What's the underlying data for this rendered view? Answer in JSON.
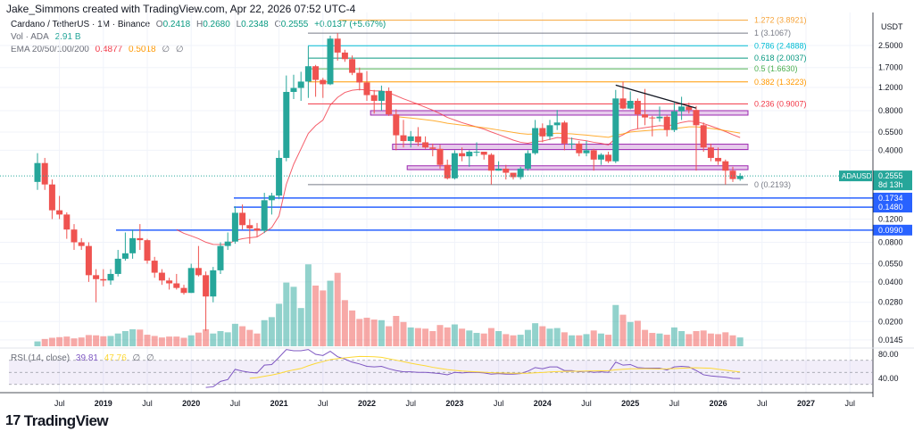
{
  "header": {
    "credit": "Jake_Simmons created with TradingView.com, Apr 22, 2026 07:52 UTC-4"
  },
  "legend": {
    "symbol": "Cardano / TetherUS · 1M · Binance",
    "o_label": "O",
    "o": "0.2418",
    "h_label": "H",
    "h": "0.2680",
    "l_label": "L",
    "l": "0.2348",
    "c_label": "C",
    "c": "0.2555",
    "change": "+0.0137 (+5.67%)",
    "vol_label": "Vol · ADA",
    "vol": "2.91 B",
    "ema_label": "EMA 20/50/100/200",
    "ema20": "0.4877",
    "ema50": "0.5018",
    "ema100": "∅",
    "ema200": "∅",
    "rsi_label": "RSI (14, close)",
    "rsi": "39.81",
    "rsi_ma": "47.76",
    "rsi_x1": "∅",
    "rsi_x2": "∅"
  },
  "colors": {
    "up": "#26a69a",
    "down": "#ef5350",
    "ema20": "#f23645",
    "ema50": "#ff9800",
    "rsi": "#7e57c2",
    "rsi_ma": "#fdd835",
    "hline": "#2962ff",
    "zone": "#e1bee7",
    "zone_border": "#9c27b0",
    "trendline": "#131722"
  },
  "price_axis": {
    "unit": "USDT",
    "ticks": [
      "2.5000",
      "1.7000",
      "1.2000",
      "0.8000",
      "0.5500",
      "0.4000",
      "0.1200",
      "0.0800",
      "0.0550",
      "0.0400",
      "0.0280",
      "0.0200",
      "0.0145"
    ],
    "scale": "log"
  },
  "last_price": {
    "symbol": "ADAUSDT",
    "price": "0.2555",
    "countdown": "8d 13h"
  },
  "horizontal_levels": [
    {
      "price": 0.1734,
      "label": "0.1734"
    },
    {
      "price": 0.148,
      "label": "0.1480"
    },
    {
      "price": 0.099,
      "label": "0.0990"
    }
  ],
  "fib_levels": [
    {
      "ratio": "1.272",
      "price": 3.8921,
      "label": "1.272 (3.8921)",
      "color": "#f7a43a"
    },
    {
      "ratio": "1",
      "price": 3.1067,
      "label": "1 (3.1067)",
      "color": "#787b86"
    },
    {
      "ratio": "0.786",
      "price": 2.4888,
      "label": "0.786 (2.4888)",
      "color": "#00bcd4"
    },
    {
      "ratio": "0.618",
      "price": 2.0037,
      "label": "0.618 (2.0037)",
      "color": "#089981"
    },
    {
      "ratio": "0.5",
      "price": 1.663,
      "label": "0.5 (1.6630)",
      "color": "#4caf50"
    },
    {
      "ratio": "0.382",
      "price": 1.3223,
      "label": "0.382 (1.3223)",
      "color": "#ff9800"
    },
    {
      "ratio": "0.236",
      "price": 0.9007,
      "label": "0.236 (0.9007)",
      "color": "#f23645"
    },
    {
      "ratio": "0",
      "price": 0.2193,
      "label": "0 (0.2193)",
      "color": "#787b86"
    }
  ],
  "zones": [
    {
      "from": "2022-02",
      "top": 0.8,
      "bottom": 0.74
    },
    {
      "from": "2022-05",
      "top": 0.445,
      "bottom": 0.405
    },
    {
      "from": "2022-07",
      "top": 0.305,
      "bottom": 0.285
    }
  ],
  "trendline": {
    "from": [
      "2024-11",
      1.25
    ],
    "to": [
      "2025-09",
      0.89
    ]
  },
  "rsi_axis": {
    "ticks": [
      "80.00",
      "40.00"
    ],
    "bands": [
      70,
      50,
      30
    ]
  },
  "time_axis": {
    "ticks": [
      "Jul",
      "2019",
      "Jul",
      "2020",
      "Jul",
      "2021",
      "Jul",
      "2022",
      "Jul",
      "2023",
      "Jul",
      "2024",
      "Jul",
      "2025",
      "Jul",
      "2026",
      "Jul",
      "2027",
      "Jul"
    ]
  },
  "chart_data": {
    "type": "candlestick",
    "start": "2018-04",
    "interval": "1M",
    "ohlc": [
      [
        0.23,
        0.38,
        0.2,
        0.32
      ],
      [
        0.32,
        0.35,
        0.2,
        0.22
      ],
      [
        0.22,
        0.24,
        0.12,
        0.14
      ],
      [
        0.14,
        0.18,
        0.12,
        0.13
      ],
      [
        0.13,
        0.135,
        0.085,
        0.1
      ],
      [
        0.1,
        0.11,
        0.07,
        0.08
      ],
      [
        0.08,
        0.086,
        0.07,
        0.075
      ],
      [
        0.075,
        0.08,
        0.04,
        0.045
      ],
      [
        0.045,
        0.05,
        0.028,
        0.042
      ],
      [
        0.042,
        0.05,
        0.037,
        0.041
      ],
      [
        0.041,
        0.05,
        0.038,
        0.046
      ],
      [
        0.046,
        0.07,
        0.044,
        0.06
      ],
      [
        0.06,
        0.095,
        0.058,
        0.066
      ],
      [
        0.066,
        0.1,
        0.06,
        0.086
      ],
      [
        0.086,
        0.11,
        0.07,
        0.083
      ],
      [
        0.083,
        0.085,
        0.055,
        0.058
      ],
      [
        0.058,
        0.062,
        0.043,
        0.047
      ],
      [
        0.047,
        0.05,
        0.038,
        0.041
      ],
      [
        0.041,
        0.043,
        0.035,
        0.039
      ],
      [
        0.039,
        0.046,
        0.035,
        0.036
      ],
      [
        0.036,
        0.038,
        0.032,
        0.033
      ],
      [
        0.033,
        0.055,
        0.033,
        0.051
      ],
      [
        0.051,
        0.075,
        0.044,
        0.045
      ],
      [
        0.045,
        0.048,
        0.017,
        0.031
      ],
      [
        0.031,
        0.052,
        0.028,
        0.049
      ],
      [
        0.049,
        0.08,
        0.046,
        0.075
      ],
      [
        0.075,
        0.095,
        0.07,
        0.081
      ],
      [
        0.081,
        0.15,
        0.078,
        0.134
      ],
      [
        0.134,
        0.155,
        0.1,
        0.108
      ],
      [
        0.108,
        0.12,
        0.078,
        0.102
      ],
      [
        0.102,
        0.112,
        0.088,
        0.098
      ],
      [
        0.098,
        0.19,
        0.094,
        0.167
      ],
      [
        0.167,
        0.19,
        0.13,
        0.181
      ],
      [
        0.181,
        0.4,
        0.17,
        0.35
      ],
      [
        0.35,
        1.48,
        0.33,
        1.11
      ],
      [
        1.11,
        1.5,
        0.98,
        1.19
      ],
      [
        1.19,
        1.58,
        0.95,
        1.33
      ],
      [
        1.33,
        2.47,
        1.0,
        1.74
      ],
      [
        1.74,
        1.78,
        1.02,
        1.37
      ],
      [
        1.37,
        1.42,
        1.0,
        1.27
      ],
      [
        1.27,
        2.97,
        1.25,
        2.82
      ],
      [
        2.82,
        3.1,
        1.92,
        2.21
      ],
      [
        2.21,
        2.32,
        1.88,
        1.97
      ],
      [
        1.97,
        2.1,
        1.49,
        1.55
      ],
      [
        1.55,
        1.7,
        1.14,
        1.31
      ],
      [
        1.31,
        1.6,
        0.95,
        1.05
      ],
      [
        1.05,
        1.15,
        0.76,
        0.95
      ],
      [
        0.95,
        1.24,
        0.8,
        1.13
      ],
      [
        1.13,
        1.2,
        0.73,
        0.75
      ],
      [
        0.75,
        0.82,
        0.4,
        0.52
      ],
      [
        0.52,
        0.68,
        0.42,
        0.47
      ],
      [
        0.47,
        0.56,
        0.42,
        0.51
      ],
      [
        0.51,
        0.6,
        0.43,
        0.46
      ],
      [
        0.46,
        0.51,
        0.41,
        0.42
      ],
      [
        0.42,
        0.45,
        0.36,
        0.41
      ],
      [
        0.41,
        0.44,
        0.29,
        0.31
      ],
      [
        0.31,
        0.34,
        0.24,
        0.245
      ],
      [
        0.245,
        0.4,
        0.24,
        0.38
      ],
      [
        0.38,
        0.42,
        0.33,
        0.36
      ],
      [
        0.36,
        0.4,
        0.3,
        0.39
      ],
      [
        0.39,
        0.46,
        0.36,
        0.39
      ],
      [
        0.39,
        0.39,
        0.34,
        0.37
      ],
      [
        0.37,
        0.38,
        0.22,
        0.28
      ],
      [
        0.28,
        0.33,
        0.28,
        0.29
      ],
      [
        0.29,
        0.31,
        0.24,
        0.27
      ],
      [
        0.27,
        0.27,
        0.24,
        0.25
      ],
      [
        0.25,
        0.3,
        0.24,
        0.29
      ],
      [
        0.29,
        0.4,
        0.28,
        0.38
      ],
      [
        0.38,
        0.68,
        0.37,
        0.59
      ],
      [
        0.59,
        0.64,
        0.46,
        0.51
      ],
      [
        0.51,
        0.68,
        0.48,
        0.62
      ],
      [
        0.62,
        0.81,
        0.57,
        0.65
      ],
      [
        0.65,
        0.67,
        0.4,
        0.45
      ],
      [
        0.45,
        0.5,
        0.41,
        0.45
      ],
      [
        0.45,
        0.47,
        0.36,
        0.38
      ],
      [
        0.38,
        0.47,
        0.36,
        0.4
      ],
      [
        0.4,
        0.41,
        0.28,
        0.34
      ],
      [
        0.34,
        0.38,
        0.31,
        0.37
      ],
      [
        0.37,
        0.39,
        0.32,
        0.33
      ],
      [
        0.33,
        1.15,
        0.32,
        0.99
      ],
      [
        0.99,
        1.33,
        0.82,
        0.83
      ],
      [
        0.83,
        1.12,
        0.82,
        0.95
      ],
      [
        0.95,
        0.99,
        0.58,
        0.75
      ],
      [
        0.75,
        1.17,
        0.62,
        0.71
      ],
      [
        0.71,
        0.73,
        0.51,
        0.7
      ],
      [
        0.7,
        0.86,
        0.66,
        0.72
      ],
      [
        0.72,
        0.74,
        0.51,
        0.57
      ],
      [
        0.57,
        0.92,
        0.55,
        0.79
      ],
      [
        0.79,
        1.02,
        0.68,
        0.86
      ],
      [
        0.86,
        0.92,
        0.76,
        0.81
      ],
      [
        0.81,
        0.87,
        0.28,
        0.62
      ],
      [
        0.62,
        0.65,
        0.39,
        0.42
      ],
      [
        0.42,
        0.45,
        0.33,
        0.35
      ],
      [
        0.35,
        0.42,
        0.31,
        0.33
      ],
      [
        0.33,
        0.34,
        0.22,
        0.28
      ],
      [
        0.28,
        0.3,
        0.23,
        0.2418
      ],
      [
        0.2418,
        0.268,
        0.2348,
        0.2555
      ]
    ],
    "volume_billions": [
      1.6,
      2.4,
      2.8,
      3.0,
      3.2,
      2.6,
      2.9,
      3.7,
      3.6,
      3.3,
      3.4,
      4.2,
      5.0,
      5.6,
      5.5,
      3.8,
      3.4,
      2.9,
      3.2,
      3.2,
      2.8,
      3.6,
      4.5,
      5.6,
      4.2,
      5.0,
      4.6,
      7.4,
      6.6,
      5.4,
      4.2,
      8.6,
      9.6,
      14.0,
      21.0,
      19.6,
      12.6,
      27.0,
      20.0,
      18.4,
      21.6,
      24.2,
      15.2,
      11.8,
      9.0,
      9.4,
      8.8,
      8.6,
      6.6,
      10.0,
      8.0,
      6.2,
      6.0,
      5.8,
      5.0,
      7.0,
      6.2,
      7.2,
      5.8,
      5.2,
      4.4,
      4.2,
      6.0,
      5.0,
      4.0,
      3.6,
      3.8,
      5.4,
      7.6,
      6.6,
      5.8,
      6.0,
      4.6,
      3.6,
      3.6,
      4.0,
      5.2,
      4.2,
      3.8,
      13.6,
      10.4,
      8.0,
      8.4,
      5.4,
      4.4,
      4.2,
      3.8,
      6.2,
      5.0,
      4.0,
      5.0,
      5.2,
      4.2,
      4.0,
      4.6,
      3.6,
      2.91
    ],
    "rsi": {
      "start": "2020-03",
      "values": [
        25,
        26,
        35,
        38,
        55,
        52,
        50,
        49,
        62,
        63,
        75,
        88,
        86,
        86,
        88,
        80,
        78,
        85,
        76,
        72,
        67,
        64,
        60,
        59,
        60,
        56,
        53,
        51,
        51,
        50,
        50,
        49,
        48,
        46,
        50,
        49,
        50,
        50,
        49,
        47,
        48,
        47,
        47,
        48,
        52,
        58,
        56,
        59,
        59,
        53,
        53,
        51,
        52,
        50,
        51,
        50,
        67,
        62,
        63,
        58,
        57,
        57,
        57,
        54,
        59,
        60,
        59,
        53,
        46,
        44,
        43,
        42,
        40,
        39.81
      ],
      "ma_last": 47.76
    }
  }
}
